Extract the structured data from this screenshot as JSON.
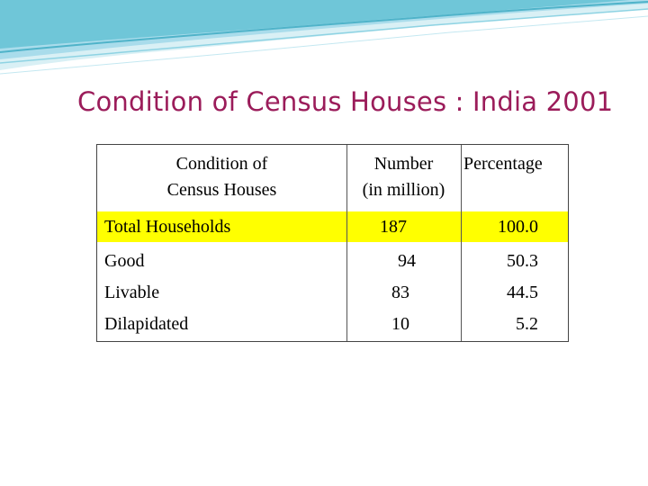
{
  "slide": {
    "title": "Condition of Census Houses : India 2001"
  },
  "table": {
    "headers": {
      "col1": [
        "Condition of",
        "Census Houses"
      ],
      "col2": [
        "Number",
        "(in million)"
      ],
      "col3": "Percentage"
    },
    "rows": [
      {
        "label": "Total Households",
        "number": "187",
        "percent": "100.0",
        "highlight": true
      },
      {
        "label": "Good",
        "number": "94",
        "percent": "50.3",
        "highlight": false
      },
      {
        "label": "Livable",
        "number": "83",
        "percent": "44.5",
        "highlight": false
      },
      {
        "label": "Dilapidated",
        "number": "10",
        "percent": "5.2",
        "highlight": false
      }
    ],
    "highlight_color": "#ffff00"
  },
  "colors": {
    "title": "#9b1c5a",
    "banner": "#6fc6d8"
  }
}
